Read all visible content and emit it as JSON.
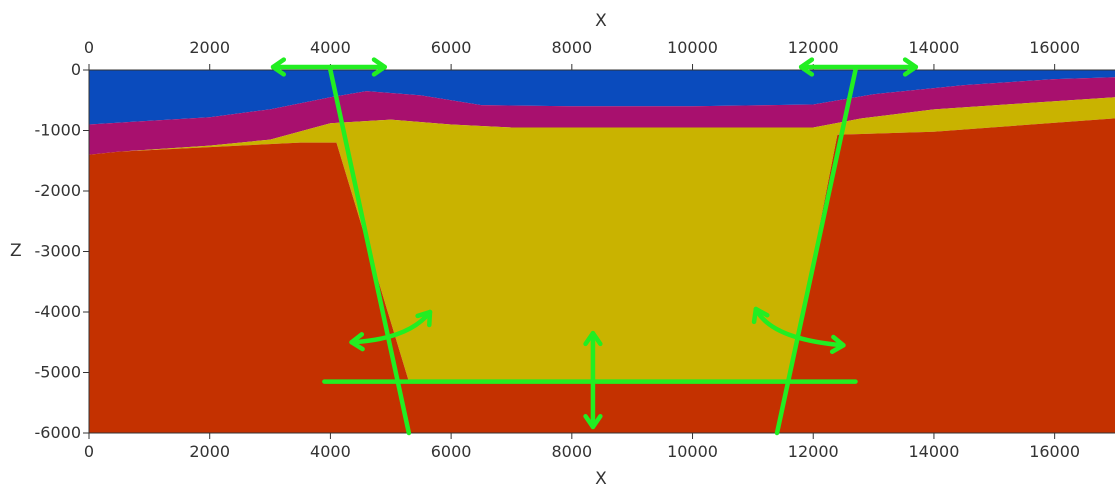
{
  "axes": {
    "x_title_top": "X",
    "x_title_bottom": "X",
    "z_title": "Z",
    "x_range": [
      0,
      17000
    ],
    "z_range": [
      -6000,
      0
    ],
    "x_ticks": [
      0,
      2000,
      4000,
      6000,
      8000,
      10000,
      12000,
      14000,
      16000
    ],
    "z_ticks": [
      0,
      -1000,
      -2000,
      -3000,
      -4000,
      -5000,
      -6000
    ]
  },
  "colors": {
    "water": "#0a4bbd",
    "magenta_layer": "#a8106e",
    "yellow_layer": "#c9b300",
    "basement": "#c43100",
    "annotation": "#22ee22"
  },
  "layers": {
    "water_base": [
      [
        0,
        -900
      ],
      [
        2000,
        -780
      ],
      [
        3000,
        -650
      ],
      [
        4000,
        -450
      ],
      [
        4600,
        -350
      ],
      [
        5500,
        -420
      ],
      [
        6500,
        -580
      ],
      [
        8000,
        -600
      ],
      [
        10000,
        -600
      ],
      [
        12000,
        -570
      ],
      [
        13000,
        -400
      ],
      [
        14500,
        -250
      ],
      [
        16000,
        -150
      ],
      [
        17000,
        -120
      ]
    ],
    "magenta_base": [
      [
        0,
        -1400
      ],
      [
        500,
        -1350
      ],
      [
        2000,
        -1250
      ],
      [
        3000,
        -1150
      ],
      [
        4000,
        -880
      ],
      [
        5000,
        -820
      ],
      [
        6000,
        -900
      ],
      [
        7000,
        -950
      ],
      [
        12000,
        -950
      ],
      [
        12800,
        -800
      ],
      [
        14000,
        -650
      ],
      [
        15500,
        -550
      ],
      [
        17000,
        -450
      ]
    ],
    "yellow_base": [
      [
        0,
        -1400
      ],
      [
        500,
        -1350
      ],
      [
        3500,
        -1200
      ],
      [
        4100,
        -1200
      ],
      [
        5300,
        -5150
      ],
      [
        11600,
        -5150
      ],
      [
        12400,
        -1070
      ],
      [
        14000,
        -1020
      ],
      [
        17000,
        -800
      ]
    ]
  },
  "annotations": {
    "faults": [
      {
        "top": [
          4000,
          0
        ],
        "bottom": [
          5300,
          -6000
        ]
      },
      {
        "top": [
          12700,
          0
        ],
        "bottom": [
          11400,
          -6000
        ]
      }
    ],
    "base_line": {
      "from": [
        3900,
        -5150
      ],
      "to": [
        12700,
        -5150
      ]
    },
    "horizontal_arrows": [
      {
        "from": [
          3050,
          50
        ],
        "to": [
          4900,
          50
        ]
      },
      {
        "from": [
          11800,
          50
        ],
        "to": [
          13700,
          50
        ]
      }
    ],
    "vertical_arrow": {
      "x": 8350,
      "from_z": -4350,
      "to_z": -5900
    },
    "rotation_arrows": [
      {
        "from": [
          4350,
          -4500
        ],
        "via": [
          5300,
          -4450
        ],
        "to": [
          5650,
          -4000
        ]
      },
      {
        "from": [
          12500,
          -4550
        ],
        "via": [
          11300,
          -4450
        ],
        "to": [
          11050,
          -3950
        ]
      }
    ]
  }
}
